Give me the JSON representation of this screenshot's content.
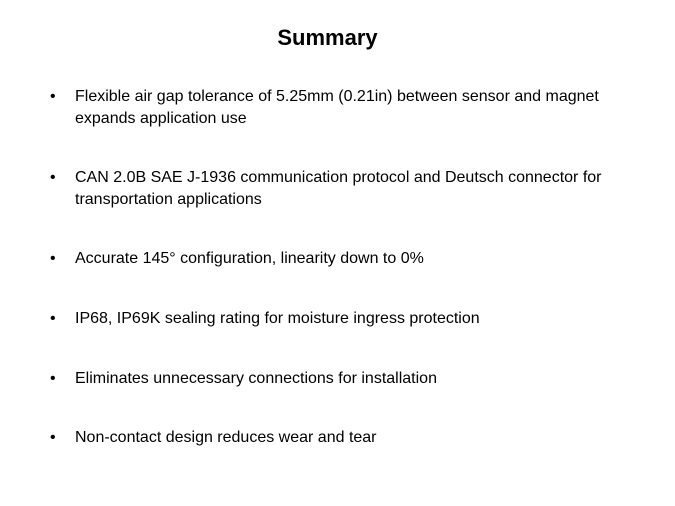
{
  "title": "Summary",
  "title_fontsize": 22,
  "title_fontweight": "bold",
  "title_color": "#000000",
  "background_color": "#ffffff",
  "text_color": "#000000",
  "body_fontsize": 16,
  "bullets": [
    "Flexible air gap tolerance of 5.25mm (0.21in) between sensor and magnet expands application use",
    "CAN 2.0B SAE J-1936 communication protocol and Deutsch connector for transportation applications",
    "Accurate 145° configuration, linearity down to 0%",
    "IP68, IP69K sealing rating for moisture ingress protection",
    "Eliminates unnecessary connections for installation",
    "Non-contact design reduces wear and tear"
  ]
}
